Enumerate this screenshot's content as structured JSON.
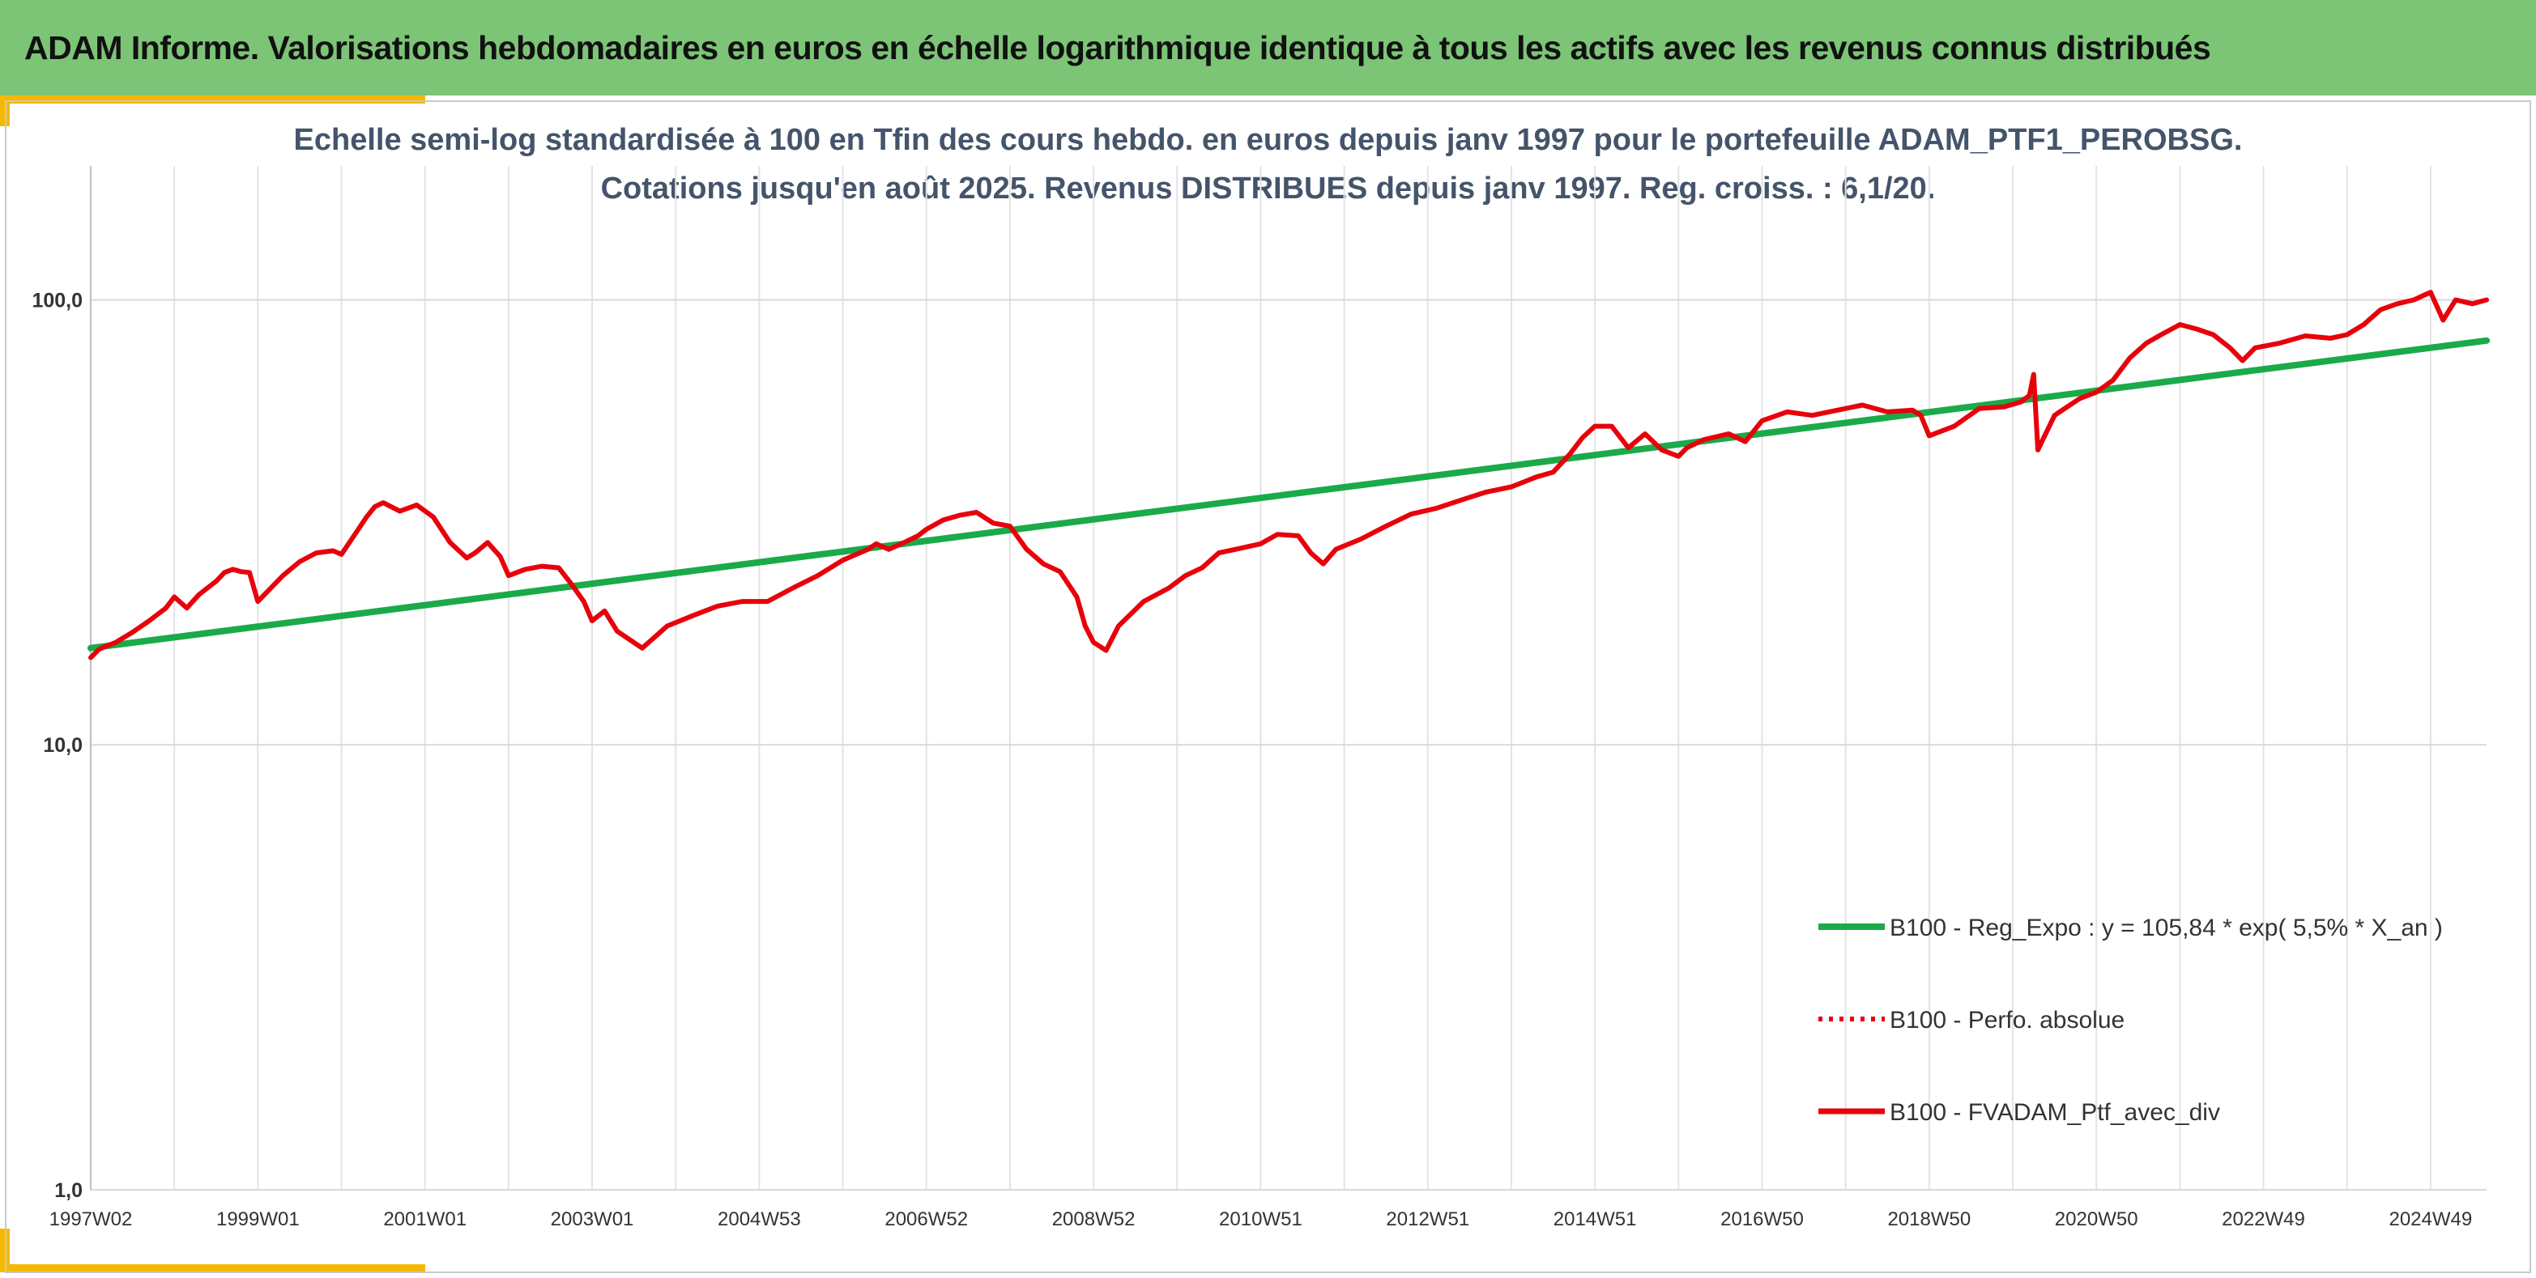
{
  "banner": {
    "title": "ADAM Informe. Valorisations hebdomadaires en euros en échelle logarithmique identique à tous les actifs avec les revenus connus distribués"
  },
  "colors": {
    "banner_bg": "#7cc576",
    "corner_accent": "#f5b800",
    "regression": "#1aaa4a",
    "portfolio": "#e8000b",
    "subtitle": "#44546a"
  },
  "chart_data": {
    "type": "line",
    "title_line1": "Echelle semi-log standardisée à 100 en Tfin des cours hebdo. en euros depuis janv 1997 pour le portefeuille ADAM_PTF1_PEROBSG.",
    "title_line2": "Cotations jusqu'en août 2025. Revenus DISTRIBUES depuis janv 1997. Reg. croiss. : 6,1/20.",
    "y_scale": "log",
    "ylim": [
      1,
      200
    ],
    "y_ticks": [
      {
        "value": 1,
        "label": "1,0"
      },
      {
        "value": 10,
        "label": "10,0"
      },
      {
        "value": 100,
        "label": "100,0"
      }
    ],
    "xlim": [
      1997.0,
      2025.67
    ],
    "x_ticks": [
      {
        "value": 1997.0,
        "label": "1997W02"
      },
      {
        "value": 1999.0,
        "label": "1999W01"
      },
      {
        "value": 2001.0,
        "label": "2001W01"
      },
      {
        "value": 2003.0,
        "label": "2003W01"
      },
      {
        "value": 2005.0,
        "label": "2004W53"
      },
      {
        "value": 2007.0,
        "label": "2006W52"
      },
      {
        "value": 2009.0,
        "label": "2008W52"
      },
      {
        "value": 2011.0,
        "label": "2010W51"
      },
      {
        "value": 2013.0,
        "label": "2012W51"
      },
      {
        "value": 2015.0,
        "label": "2014W51"
      },
      {
        "value": 2017.0,
        "label": "2016W50"
      },
      {
        "value": 2019.0,
        "label": "2018W50"
      },
      {
        "value": 2021.0,
        "label": "2020W50"
      },
      {
        "value": 2023.0,
        "label": "2022W49"
      },
      {
        "value": 2025.0,
        "label": "2024W49"
      }
    ],
    "grid": {
      "vertical": true,
      "horizontal": true
    },
    "legend_position": "bottom-right",
    "series": [
      {
        "name": "B100 - Reg_Expo : y = 105,84 * exp( 5,5% *  X_an )",
        "style": "solid-thick",
        "color": "#1aaa4a",
        "x": [
          1997.0,
          2025.67
        ],
        "y": [
          16.5,
          81.0
        ]
      },
      {
        "name": "B100 - Perfo. absolue",
        "style": "dotted",
        "color": "#e8000b",
        "x": [],
        "y": []
      },
      {
        "name": "B100 - FVADAM_Ptf_avec_div",
        "style": "solid",
        "color": "#e8000b",
        "x": [
          1997.0,
          1997.1,
          1997.3,
          1997.5,
          1997.7,
          1997.9,
          1998.0,
          1998.15,
          1998.3,
          1998.5,
          1998.6,
          1998.7,
          1998.8,
          1998.9,
          1999.0,
          1999.3,
          1999.5,
          1999.7,
          1999.9,
          2000.0,
          2000.15,
          2000.3,
          2000.4,
          2000.5,
          2000.7,
          2000.9,
          2001.1,
          2001.3,
          2001.5,
          2001.6,
          2001.75,
          2001.9,
          2002.0,
          2002.2,
          2002.4,
          2002.6,
          2002.75,
          2002.9,
          2003.0,
          2003.15,
          2003.3,
          2003.6,
          2003.9,
          2004.2,
          2004.5,
          2004.8,
          2005.1,
          2005.4,
          2005.7,
          2006.0,
          2006.3,
          2006.4,
          2006.55,
          2006.7,
          2006.9,
          2007.0,
          2007.2,
          2007.4,
          2007.6,
          2007.8,
          2008.0,
          2008.2,
          2008.4,
          2008.6,
          2008.8,
          2008.9,
          2009.0,
          2009.15,
          2009.3,
          2009.6,
          2009.9,
          2010.1,
          2010.3,
          2010.5,
          2010.7,
          2011.0,
          2011.2,
          2011.45,
          2011.6,
          2011.75,
          2011.9,
          2012.2,
          2012.5,
          2012.8,
          2013.1,
          2013.4,
          2013.7,
          2014.0,
          2014.3,
          2014.5,
          2014.7,
          2014.85,
          2015.0,
          2015.2,
          2015.4,
          2015.6,
          2015.8,
          2016.0,
          2016.1,
          2016.3,
          2016.6,
          2016.8,
          2017.0,
          2017.3,
          2017.6,
          2017.9,
          2018.2,
          2018.5,
          2018.8,
          2018.9,
          2019.0,
          2019.3,
          2019.6,
          2019.9,
          2020.1,
          2020.2,
          2020.25,
          2020.3,
          2020.5,
          2020.8,
          2021.0,
          2021.2,
          2021.4,
          2021.6,
          2021.8,
          2022.0,
          2022.2,
          2022.4,
          2022.6,
          2022.75,
          2022.9,
          2023.2,
          2023.5,
          2023.8,
          2024.0,
          2024.2,
          2024.4,
          2024.6,
          2024.8,
          2024.95,
          2025.0,
          2025.15,
          2025.3,
          2025.5,
          2025.67
        ],
        "y": [
          15.7,
          16.4,
          17.0,
          17.9,
          19.0,
          20.3,
          21.5,
          20.3,
          21.8,
          23.3,
          24.4,
          24.8,
          24.5,
          24.4,
          21.0,
          24.0,
          25.8,
          27.0,
          27.3,
          26.8,
          29.5,
          32.5,
          34.3,
          35.0,
          33.5,
          34.6,
          32.5,
          28.5,
          26.3,
          27.0,
          28.5,
          26.5,
          24.0,
          24.8,
          25.2,
          25.0,
          23.0,
          21.0,
          19.0,
          20.0,
          18.0,
          16.5,
          18.5,
          19.5,
          20.5,
          21.0,
          21.0,
          22.5,
          24.0,
          26.0,
          27.5,
          28.3,
          27.5,
          28.3,
          29.5,
          30.5,
          32.0,
          32.8,
          33.3,
          31.5,
          31.0,
          27.5,
          25.5,
          24.5,
          21.5,
          18.5,
          17.0,
          16.3,
          18.5,
          21.0,
          22.5,
          24.0,
          25.0,
          27.0,
          27.5,
          28.3,
          29.7,
          29.5,
          27.0,
          25.5,
          27.5,
          29.0,
          31.0,
          33.0,
          34.0,
          35.5,
          37.0,
          38.0,
          40.0,
          41.0,
          45.0,
          49.0,
          52.0,
          52.0,
          46.5,
          50.0,
          46.0,
          44.5,
          46.5,
          48.5,
          50.0,
          48.0,
          53.5,
          56.0,
          55.0,
          56.5,
          58.0,
          56.0,
          56.5,
          55.0,
          49.5,
          52.0,
          57.0,
          57.5,
          59.0,
          61.0,
          68.0,
          46.0,
          55.0,
          60.0,
          62.0,
          66.0,
          74.0,
          80.0,
          84.0,
          88.0,
          86.0,
          83.5,
          78.0,
          73.0,
          78.0,
          80.0,
          83.0,
          82.0,
          83.5,
          88.0,
          95.0,
          98.0,
          100.0,
          103.0,
          104.0,
          90.0,
          100.0,
          98.0,
          100.0
        ]
      }
    ]
  }
}
